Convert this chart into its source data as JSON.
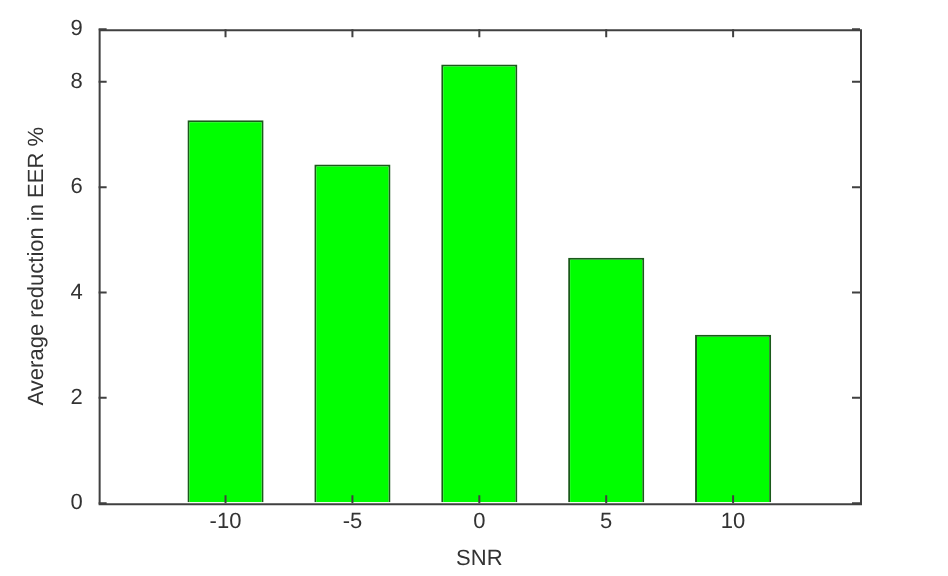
{
  "chart_data": {
    "type": "bar",
    "xlabel": "SNR",
    "ylabel": "Average reduction in EER %",
    "x": [
      -10,
      -5,
      0,
      5,
      10
    ],
    "values": [
      7.27,
      6.43,
      8.33,
      4.66,
      3.2
    ],
    "color": "#00ff00",
    "xlim": [
      -15,
      15
    ],
    "xticks": [
      -10,
      -5,
      0,
      5,
      10
    ],
    "ylim": [
      0,
      9
    ],
    "yticks": [
      0,
      2,
      4,
      6,
      8,
      9
    ],
    "grid": false,
    "legend": false
  }
}
